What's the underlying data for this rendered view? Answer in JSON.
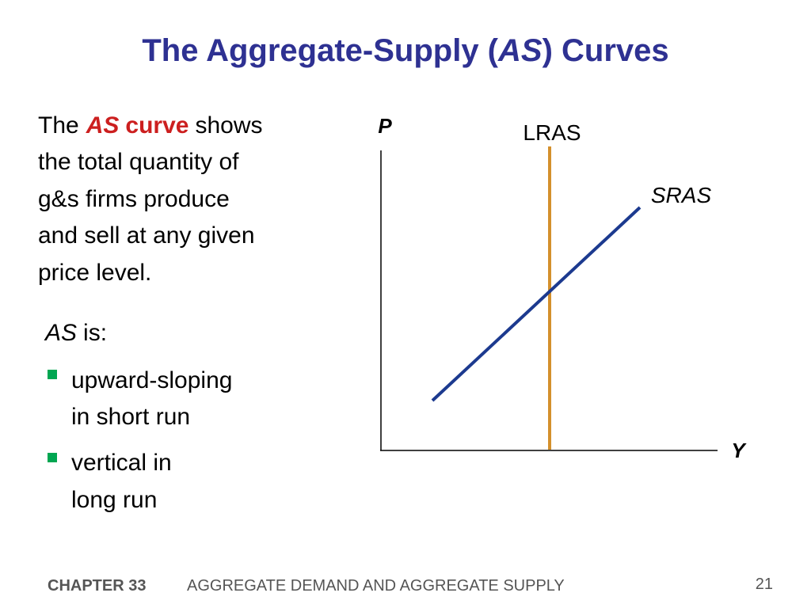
{
  "title": {
    "before": "The Aggregate-Supply (",
    "italic": "AS",
    "after": ") Curves"
  },
  "intro": {
    "the": "The",
    "as": "AS",
    "curve": "curve",
    "shows": "shows",
    "lines": [
      "the total quantity of",
      "g&s firms produce",
      "and sell at any given",
      "price level."
    ]
  },
  "as_is": {
    "as": "AS",
    "is": "is:"
  },
  "bullets": [
    {
      "lines": [
        "upward-sloping",
        "in short run"
      ]
    },
    {
      "lines": [
        "vertical in",
        "long run"
      ]
    }
  ],
  "graph": {
    "y_axis": "P",
    "x_axis": "Y",
    "lras": "LRAS",
    "sras": "SRAS"
  },
  "footer": {
    "chapter": "CHAPTER 33",
    "subject": "AGGREGATE DEMAND AND AGGREGATE SUPPLY",
    "page": 21
  }
}
